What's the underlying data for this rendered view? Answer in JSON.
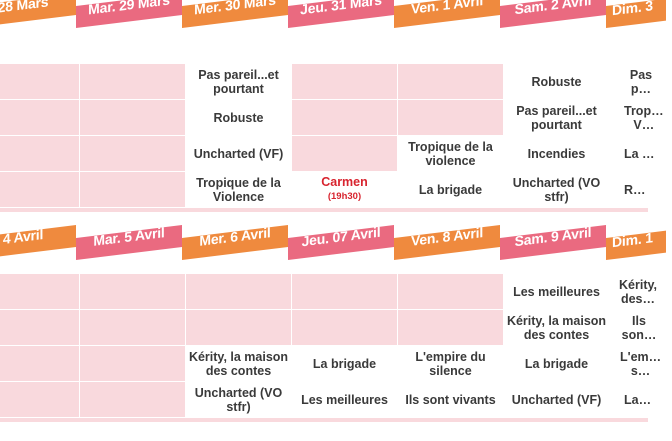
{
  "colors": {
    "ribbon_pink": "#ea6a80",
    "ribbon_orange": "#ef8a3e",
    "empty_cell": "#f9d9dd",
    "highlight": "#d8242f"
  },
  "week1": {
    "days": [
      {
        "label": "28 Mars"
      },
      {
        "label": "Mar. 29 Mars"
      },
      {
        "label": "Mer. 30 Mars"
      },
      {
        "label": "Jeu. 31 Mars"
      },
      {
        "label": "Ven. 1 Avril"
      },
      {
        "label": "Sam. 2 Avril"
      },
      {
        "label": "Dim. 3"
      }
    ],
    "rows": [
      [
        "",
        "",
        "Pas pareil...et pourtant",
        "",
        "",
        "Robuste",
        "Pas p…"
      ],
      [
        "",
        "",
        "Robuste",
        "",
        "",
        "Pas pareil...et pourtant",
        "Trop… V…"
      ],
      [
        "",
        "",
        "Uncharted (VF)",
        "",
        "Tropique de la violence",
        "Incendies",
        "La …"
      ],
      [
        "",
        "",
        "Tropique de la Violence",
        "Carmen",
        "La brigade",
        "Uncharted (VO stfr)",
        "R…"
      ]
    ],
    "carmen_time": "(19h30)"
  },
  "week2": {
    "days": [
      {
        "label": "4 Avril"
      },
      {
        "label": "Mar. 5 Avril"
      },
      {
        "label": "Mer. 6 Avril"
      },
      {
        "label": "Jeu. 07 Avril"
      },
      {
        "label": "Ven. 8 Avril"
      },
      {
        "label": "Sam. 9 Avril"
      },
      {
        "label": "Dim. 1"
      }
    ],
    "rows": [
      [
        "",
        "",
        "",
        "",
        "",
        "Les meilleures",
        "Kérity, des…"
      ],
      [
        "",
        "",
        "",
        "",
        "",
        "Kérity, la maison des contes",
        "Ils son…"
      ],
      [
        "",
        "",
        "Kérity, la maison des contes",
        "La brigade",
        "L'empire du silence",
        "La brigade",
        "L'em… s…"
      ],
      [
        "",
        "",
        "Uncharted (VO stfr)",
        "Les meilleures",
        "Ils sont vivants",
        "Uncharted (VF)",
        "La…"
      ]
    ]
  }
}
